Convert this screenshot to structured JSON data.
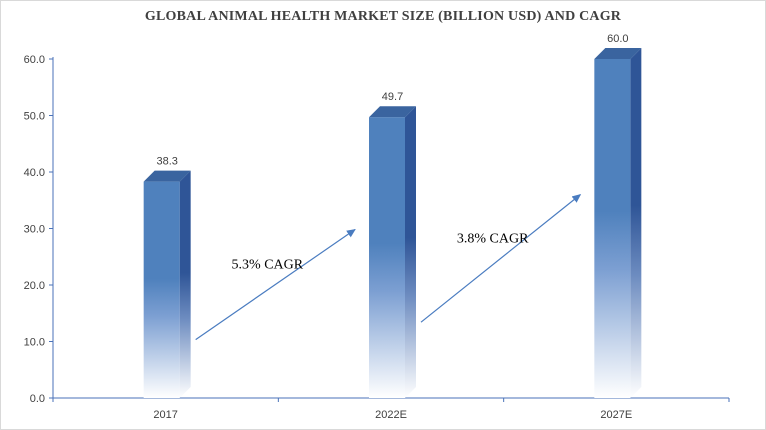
{
  "chart_data": {
    "type": "bar",
    "title": "GLOBAL ANIMAL HEALTH MARKET SIZE (BILLION USD) AND CAGR",
    "categories": [
      "2017",
      "2022E",
      "2027E"
    ],
    "values": [
      38.3,
      49.7,
      60.0
    ],
    "value_labels": [
      "38.3",
      "49.7",
      "60.0"
    ],
    "xlabel": "",
    "ylabel": "",
    "ylim": [
      0,
      60
    ],
    "yticks": [
      "0.0",
      "10.0",
      "20.0",
      "30.0",
      "40.0",
      "50.0",
      "60.0"
    ],
    "grid": false,
    "legend": "none",
    "style": "3d-gradient-bars",
    "colors": {
      "bar_top": "#4f81bd",
      "bar_side": "#2f5597",
      "bar_fade": "#ffffff",
      "axis": "#4a72b8",
      "arrow": "#4a7cc0"
    },
    "annotations": [
      {
        "text": "5.3% CAGR",
        "from_category": "2017",
        "to_category": "2022E"
      },
      {
        "text": "3.8% CAGR",
        "from_category": "2022E",
        "to_category": "2027E"
      }
    ]
  }
}
